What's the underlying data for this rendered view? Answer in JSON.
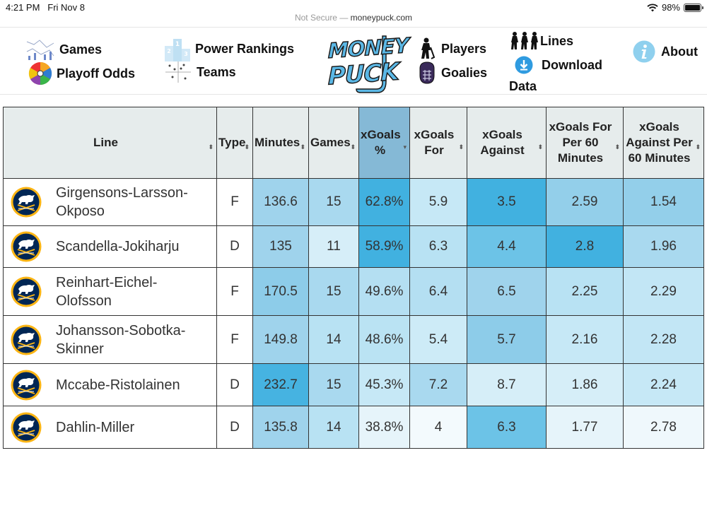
{
  "status_bar": {
    "time": "4:21 PM",
    "date": "Fri Nov 8",
    "battery": "98%",
    "battery_level": 0.98
  },
  "url_bar": {
    "security": "Not Secure —",
    "domain": "moneypuck.com"
  },
  "nav": {
    "games": "Games",
    "playoff_odds": "Playoff Odds",
    "power_rankings": "Power Rankings",
    "teams": "Teams",
    "logo_line1": "MONEY",
    "logo_line2": "PUCK",
    "players": "Players",
    "goalies": "Goalies",
    "lines": "Lines",
    "download": "Download",
    "data": "Data",
    "about": "About"
  },
  "colors": {
    "accent": "#5bb8e6",
    "header_bg": "#e6ecec",
    "sorted_header": "#85b9d6",
    "sabres_navy": "#002654",
    "sabres_gold": "#fcb514"
  },
  "table": {
    "headers": [
      {
        "label": "Line"
      },
      {
        "label": "Type"
      },
      {
        "label": "Minutes"
      },
      {
        "label": "Games"
      },
      {
        "label": "xGoals %"
      },
      {
        "label": "xGoals For"
      },
      {
        "label": "xGoals Against"
      },
      {
        "label": "xGoals For Per 60 Minutes"
      },
      {
        "label": "xGoals Against Per 60 Minutes"
      }
    ],
    "rows": [
      {
        "line": "Girgensons-Larsson-Okposo",
        "type": "F",
        "minutes": "136.6",
        "games": "15",
        "xg_pct": "62.8%",
        "xg_for": "5.9",
        "xg_against": "3.5",
        "xgf60": "2.59",
        "xga60": "1.54",
        "colors": [
          "#9fd3ec",
          "#a9d9ef",
          "#41b1e0",
          "#c6e8f6",
          "#41b1e0",
          "#93cfea",
          "#93cfea"
        ]
      },
      {
        "line": "Scandella-Jokiharju",
        "type": "D",
        "minutes": "135",
        "games": "11",
        "xg_pct": "58.9%",
        "xg_for": "6.3",
        "xg_against": "4.4",
        "xgf60": "2.8",
        "xga60": "1.96",
        "colors": [
          "#9fd3ec",
          "#d6eef8",
          "#41b1e0",
          "#b8e2f3",
          "#6cc3e7",
          "#41b1e0",
          "#a9d9ef"
        ]
      },
      {
        "line": "Reinhart-Eichel-Olofsson",
        "type": "F",
        "minutes": "170.5",
        "games": "15",
        "xg_pct": "49.6%",
        "xg_for": "6.4",
        "xg_against": "6.5",
        "xgf60": "2.25",
        "xga60": "2.29",
        "colors": [
          "#8dcce9",
          "#a9d9ef",
          "#b4dff2",
          "#b4dff2",
          "#9fd3ec",
          "#b8e2f3",
          "#c2e6f5"
        ]
      },
      {
        "line": "Johansson-Sobotka-Skinner",
        "type": "F",
        "minutes": "149.8",
        "games": "14",
        "xg_pct": "48.6%",
        "xg_for": "5.4",
        "xg_against": "5.7",
        "xgf60": "2.16",
        "xga60": "2.28",
        "colors": [
          "#9fd3ec",
          "#b8e2f3",
          "#bae3f3",
          "#cdebf7",
          "#8dcce9",
          "#c6e8f6",
          "#c2e6f5"
        ]
      },
      {
        "line": "Mccabe-Ristolainen",
        "type": "D",
        "minutes": "232.7",
        "games": "15",
        "xg_pct": "45.3%",
        "xg_for": "7.2",
        "xg_against": "8.7",
        "xgf60": "1.86",
        "xga60": "2.24",
        "colors": [
          "#46b3e1",
          "#a9d9ef",
          "#c6e8f6",
          "#a9d9ef",
          "#d6eef8",
          "#d6eef8",
          "#c6e8f6"
        ]
      },
      {
        "line": "Dahlin-Miller",
        "type": "D",
        "minutes": "135.8",
        "games": "14",
        "xg_pct": "38.8%",
        "xg_for": "4",
        "xg_against": "6.3",
        "xgf60": "1.77",
        "xga60": "2.78",
        "colors": [
          "#9fd3ec",
          "#b8e2f3",
          "#e6f4fa",
          "#f3fafd",
          "#6cc3e7",
          "#e6f4fa",
          "#eff8fc"
        ]
      }
    ]
  }
}
